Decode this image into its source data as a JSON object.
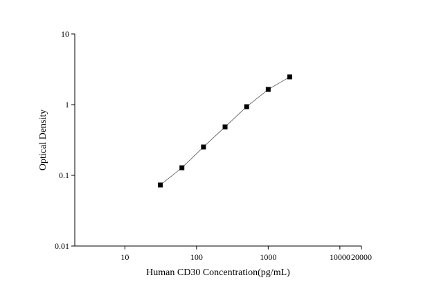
{
  "chart_data": {
    "type": "line",
    "x_label": "Human CD30 Concentration(pg/mL)",
    "y_label": "Optical Density",
    "x": [
      31.25,
      62.5,
      125,
      250,
      500,
      1000,
      2000
    ],
    "series": [
      {
        "color": "#000000",
        "values": [
          0.073,
          0.128,
          0.252,
          0.485,
          0.935,
          1.64,
          2.47
        ]
      }
    ],
    "x_log": true,
    "y_log": true,
    "xlim": [
      2,
      20000
    ],
    "xticks": [
      10,
      100,
      1000,
      10000,
      20000
    ],
    "ylim": [
      0.01,
      10
    ],
    "yticks": [
      0.01,
      0.1,
      1,
      10
    ],
    "grid": false
  }
}
